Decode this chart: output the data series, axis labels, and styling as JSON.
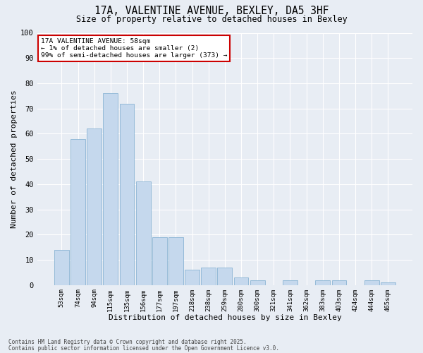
{
  "title_line1": "17A, VALENTINE AVENUE, BEXLEY, DA5 3HF",
  "title_line2": "Size of property relative to detached houses in Bexley",
  "xlabel": "Distribution of detached houses by size in Bexley",
  "ylabel": "Number of detached properties",
  "categories": [
    "53sqm",
    "74sqm",
    "94sqm",
    "115sqm",
    "135sqm",
    "156sqm",
    "177sqm",
    "197sqm",
    "218sqm",
    "238sqm",
    "259sqm",
    "280sqm",
    "300sqm",
    "321sqm",
    "341sqm",
    "362sqm",
    "383sqm",
    "403sqm",
    "424sqm",
    "444sqm",
    "465sqm"
  ],
  "values": [
    14,
    58,
    62,
    76,
    72,
    41,
    19,
    19,
    6,
    7,
    7,
    3,
    2,
    0,
    2,
    0,
    2,
    2,
    0,
    2,
    1
  ],
  "bar_color": "#c5d8ed",
  "bar_edgecolor": "#8ab4d4",
  "background_color": "#e8edf4",
  "grid_color": "#ffffff",
  "annotation_text": "17A VALENTINE AVENUE: 58sqm\n← 1% of detached houses are smaller (2)\n99% of semi-detached houses are larger (373) →",
  "annotation_box_color": "#ffffff",
  "annotation_box_edgecolor": "#cc0000",
  "footnote_line1": "Contains HM Land Registry data © Crown copyright and database right 2025.",
  "footnote_line2": "Contains public sector information licensed under the Open Government Licence v3.0.",
  "ylim": [
    0,
    100
  ],
  "yticks": [
    0,
    10,
    20,
    30,
    40,
    50,
    60,
    70,
    80,
    90,
    100
  ]
}
